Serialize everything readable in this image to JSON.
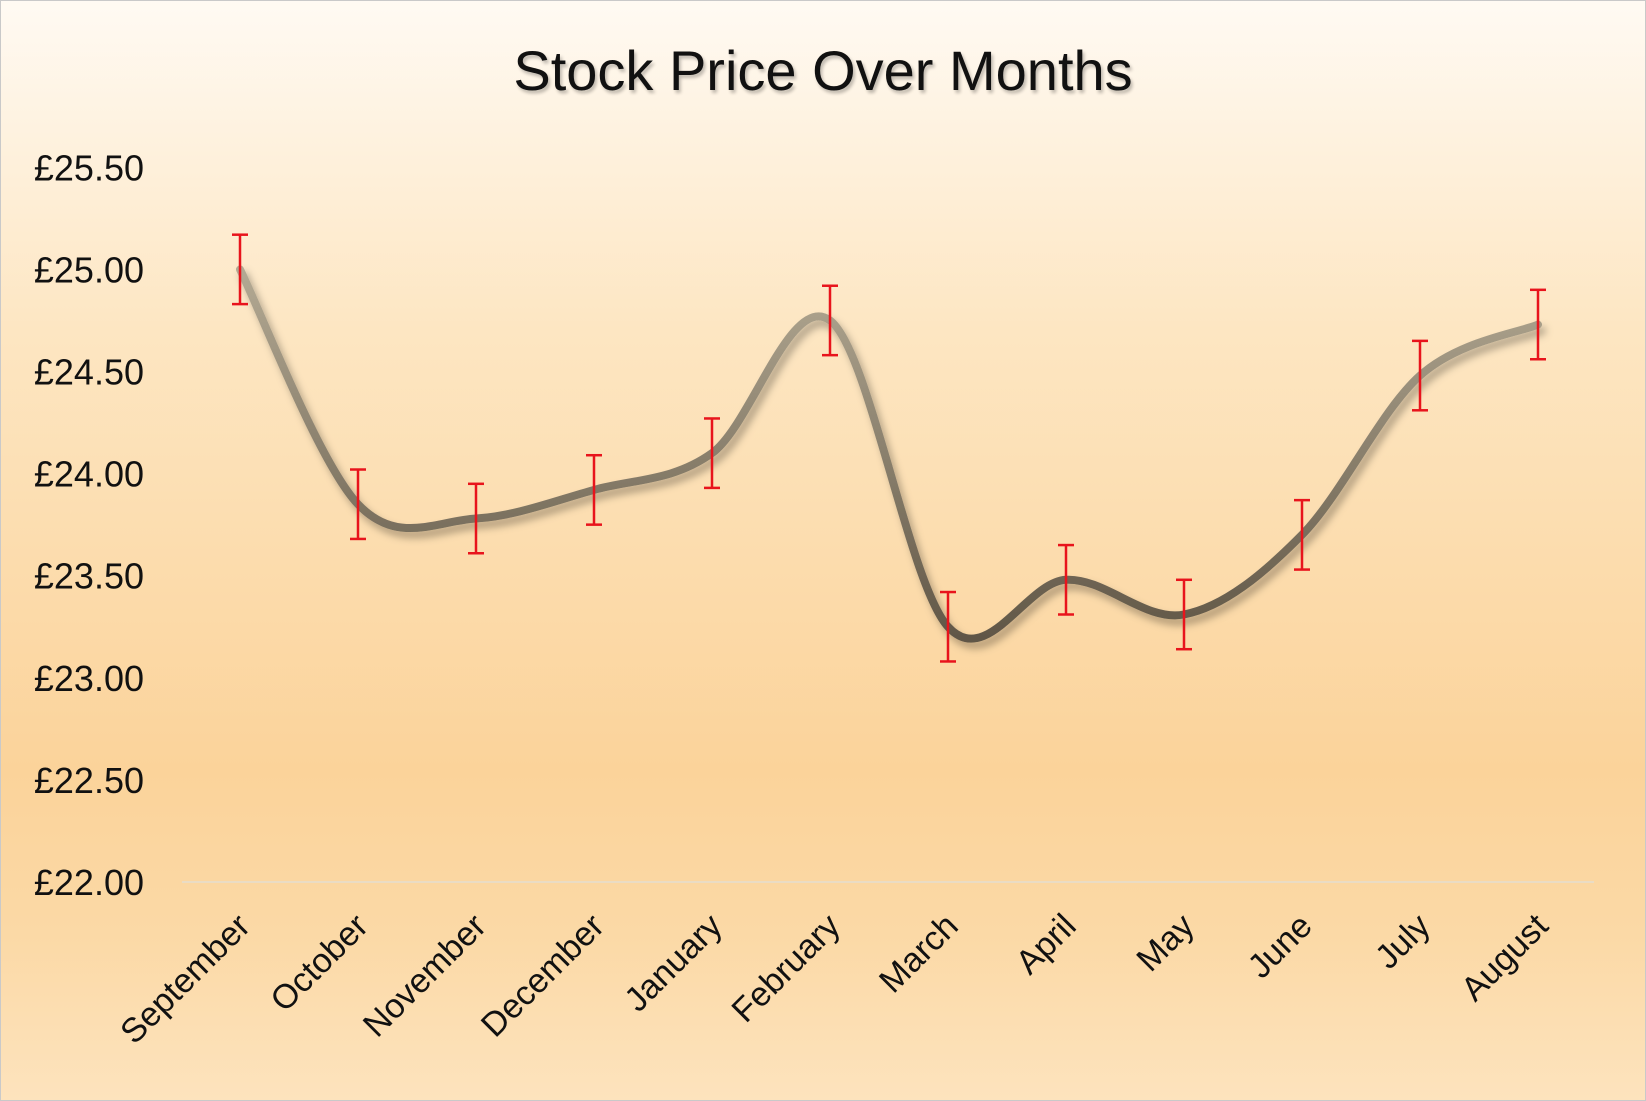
{
  "chart_data": {
    "type": "line",
    "title": "Stock Price Over Months",
    "xlabel": "",
    "ylabel": "",
    "categories": [
      "September",
      "October",
      "November",
      "December",
      "January",
      "February",
      "March",
      "April",
      "May",
      "June",
      "July",
      "August"
    ],
    "series": [
      {
        "values": [
          25.0,
          23.85,
          23.78,
          23.92,
          24.1,
          24.75,
          23.25,
          23.48,
          23.31,
          23.7,
          24.48,
          24.73
        ],
        "error": 0.17
      }
    ],
    "ylim": [
      22.0,
      25.5
    ],
    "yticks": [
      22.0,
      22.5,
      23.0,
      23.5,
      24.0,
      24.5,
      25.0,
      25.5
    ],
    "ytick_labels": [
      "£22.00",
      "£22.50",
      "£23.00",
      "£23.50",
      "£24.00",
      "£24.50",
      "£25.00",
      "£25.50"
    ],
    "grid": false,
    "smooth": true,
    "colors": {
      "line_start": "#b3a993",
      "line_end": "#5e5444",
      "error_bar": "#e8141c"
    }
  }
}
